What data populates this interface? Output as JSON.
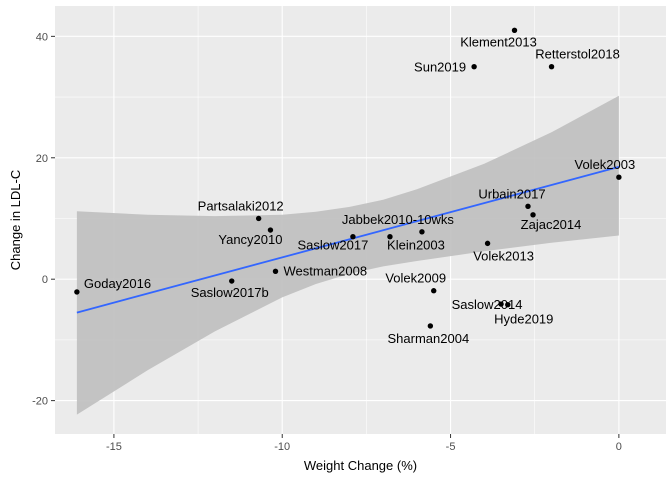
{
  "chart_data": {
    "type": "scatter",
    "title": "",
    "xlabel": "Weight Change (%)",
    "ylabel": "Change in LDL-C",
    "xlim": [
      -16.75,
      1.4
    ],
    "ylim": [
      -25.5,
      45.0
    ],
    "x_ticks": [
      -15,
      -10,
      -5,
      0
    ],
    "y_ticks": [
      -20,
      0,
      20,
      40
    ],
    "grid": true,
    "points": [
      {
        "name": "Goday2016",
        "x": -16.1,
        "y": -2.1
      },
      {
        "name": "Saslow2017b",
        "x": -11.5,
        "y": -0.3
      },
      {
        "name": "Partsalaki2012",
        "x": -10.7,
        "y": 10.0
      },
      {
        "name": "Yancy2010",
        "x": -10.35,
        "y": 8.1
      },
      {
        "name": "Westman2008",
        "x": -10.2,
        "y": 1.3
      },
      {
        "name": "Saslow2017",
        "x": -7.9,
        "y": 7.0
      },
      {
        "name": "Klein2003",
        "x": -6.8,
        "y": 7.0
      },
      {
        "name": "Jabbek2010-10wks",
        "x": -5.85,
        "y": 7.8
      },
      {
        "name": "Volek2009",
        "x": -5.5,
        "y": -1.9
      },
      {
        "name": "Sharman2004",
        "x": -5.6,
        "y": -7.7
      },
      {
        "name": "Sun2019",
        "x": -4.3,
        "y": 35.0
      },
      {
        "name": "Volek2013",
        "x": -3.9,
        "y": 5.9
      },
      {
        "name": "Saslow2014",
        "x": -3.5,
        "y": -4.1
      },
      {
        "name": "Hyde2019",
        "x": -3.3,
        "y": -4.2
      },
      {
        "name": "Klement2013",
        "x": -3.1,
        "y": 41.0
      },
      {
        "name": "Urbain2017",
        "x": -2.7,
        "y": 12.0
      },
      {
        "name": "Zajac2014",
        "x": -2.55,
        "y": 10.6
      },
      {
        "name": "Retterstol2018",
        "x": -2.0,
        "y": 35.0
      },
      {
        "name": "Volek2003",
        "x": 0.0,
        "y": 16.8
      }
    ],
    "trend_line": {
      "x": [
        -16.1,
        0.0
      ],
      "y": [
        -5.5,
        18.5
      ],
      "color": "#3366ff"
    },
    "confidence_band": {
      "x": [
        -16.1,
        -14.0,
        -12.0,
        -10.0,
        -9.0,
        -8.0,
        -7.0,
        -6.0,
        -4.0,
        -2.0,
        0.0
      ],
      "lower": [
        -22.3,
        -15.0,
        -8.6,
        -3.0,
        -0.8,
        0.9,
        2.1,
        3.0,
        4.6,
        6.0,
        7.2
      ],
      "upper": [
        11.2,
        10.6,
        10.4,
        10.6,
        11.1,
        11.9,
        13.1,
        14.8,
        19.0,
        24.2,
        30.2
      ],
      "color": "#bfbfbf"
    }
  },
  "colors": {
    "panel_background": "#ebebeb",
    "grid": "#ffffff",
    "point": "#000000",
    "trend": "#3366ff",
    "band": "#bfbfbf"
  }
}
